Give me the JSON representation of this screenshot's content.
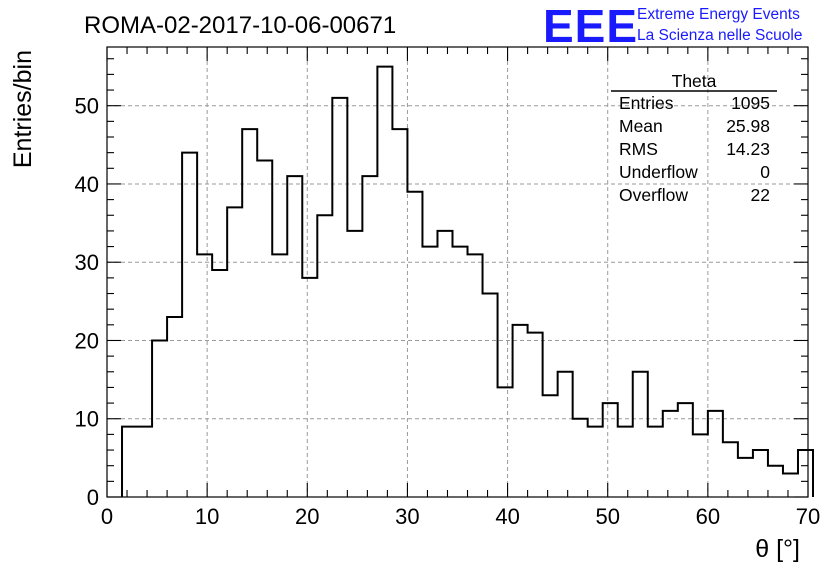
{
  "header": {
    "title": "ROMA-02-2017-10-06-00671",
    "logo_text": "EEE",
    "logo_line1": "Extreme Energy Events",
    "logo_line2": "La Scienza nelle Scuole",
    "logo_color": "#1a1aff"
  },
  "stats": {
    "title": "Theta",
    "rows": [
      {
        "label": "Entries",
        "value": "1095"
      },
      {
        "label": "Mean",
        "value": "25.98"
      },
      {
        "label": "RMS",
        "value": "14.23"
      },
      {
        "label": "Underflow",
        "value": "0"
      },
      {
        "label": "Overflow",
        "value": "22"
      }
    ]
  },
  "chart_data": {
    "type": "histogram",
    "xlabel": "θ [°]",
    "ylabel": "Entries/bin",
    "xlim": [
      0,
      70
    ],
    "ylim": [
      0,
      57.5
    ],
    "x_ticks": [
      0,
      10,
      20,
      30,
      40,
      50,
      60,
      70
    ],
    "y_ticks": [
      0,
      10,
      20,
      30,
      40,
      50
    ],
    "grid": true,
    "bins": {
      "start": 1.5,
      "width": 1.5,
      "values": [
        9,
        9,
        20,
        23,
        44,
        31,
        29,
        37,
        47,
        43,
        31,
        41,
        28,
        36,
        51,
        34,
        41,
        55,
        47,
        39,
        32,
        34,
        32,
        31,
        26,
        14,
        22,
        21,
        13,
        16,
        10,
        9,
        12,
        9,
        16,
        9,
        11,
        12,
        8,
        11,
        7,
        5,
        6,
        4,
        3,
        6
      ]
    }
  }
}
